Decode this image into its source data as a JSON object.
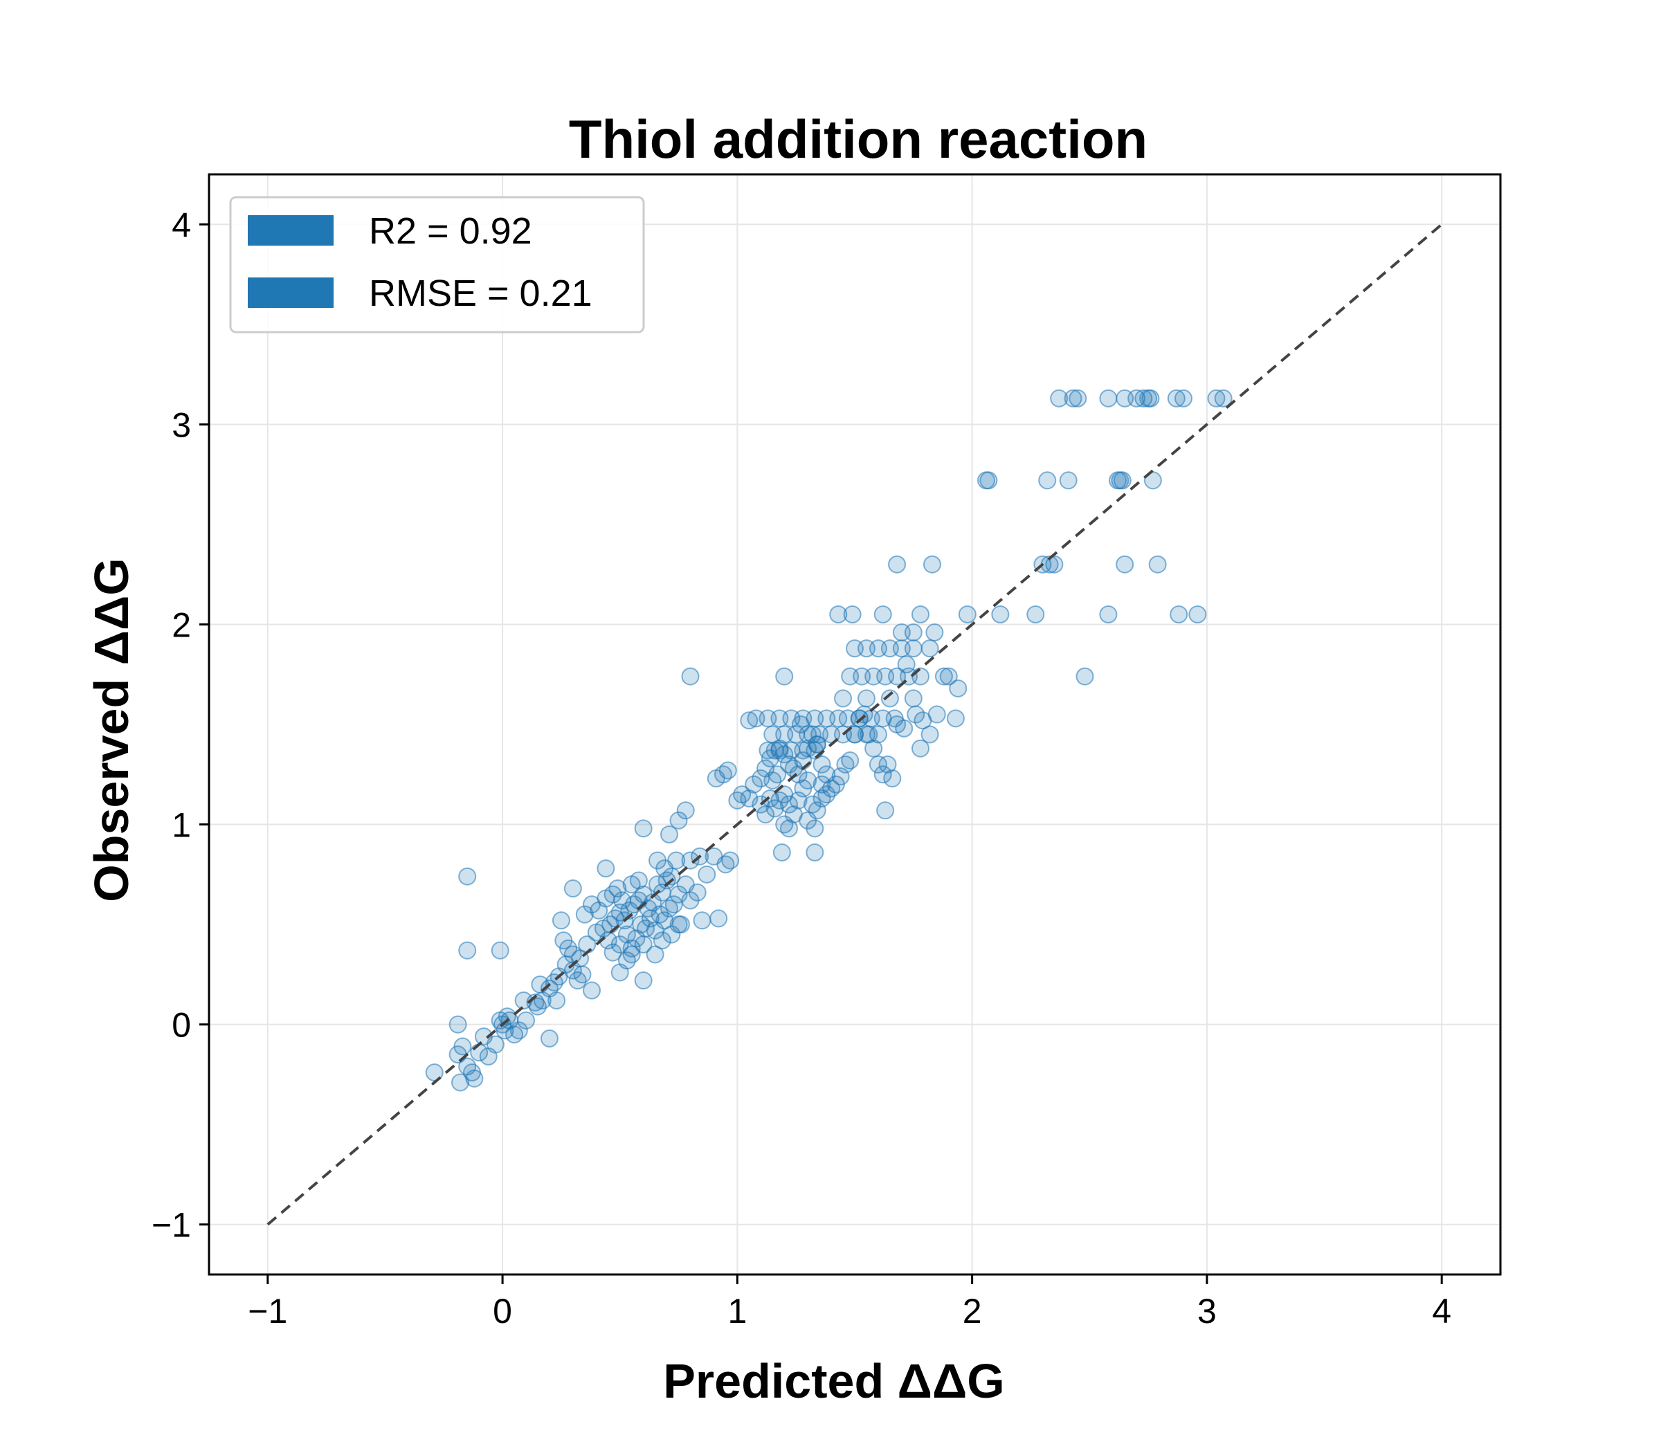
{
  "chart_data": {
    "type": "scatter",
    "title": "Thiol addition reaction",
    "xlabel": "Predicted ΔΔG",
    "ylabel": "Observed ΔΔG",
    "xlim": [
      -1.25,
      4.25
    ],
    "ylim": [
      -1.25,
      4.25
    ],
    "xticks": [
      -1,
      0,
      1,
      2,
      3,
      4
    ],
    "yticks": [
      -1,
      0,
      1,
      2,
      3,
      4
    ],
    "xtick_labels": [
      "−1",
      "0",
      "1",
      "2",
      "3",
      "4"
    ],
    "ytick_labels": [
      "−1",
      "0",
      "1",
      "2",
      "3",
      "4"
    ],
    "grid": true,
    "legend_position": "top-left",
    "legend": [
      {
        "label": "R2 = 0.92",
        "color": "#1f77b4"
      },
      {
        "label": "RMSE = 0.21",
        "color": "#1f77b4"
      }
    ],
    "point_color": "#1f77b4",
    "reference_line": {
      "x": [
        -1,
        4
      ],
      "y": [
        -1,
        4
      ],
      "style": "dashed",
      "color": "#444444"
    },
    "points": [
      [
        -0.29,
        -0.24
      ],
      [
        -0.19,
        -0.15
      ],
      [
        -0.18,
        -0.29
      ],
      [
        -0.19,
        0.0
      ],
      [
        -0.17,
        -0.11
      ],
      [
        -0.15,
        -0.21
      ],
      [
        -0.13,
        -0.24
      ],
      [
        -0.12,
        -0.27
      ],
      [
        -0.1,
        -0.14
      ],
      [
        -0.08,
        -0.06
      ],
      [
        -0.06,
        -0.16
      ],
      [
        -0.03,
        -0.1
      ],
      [
        -0.01,
        0.02
      ],
      [
        0.0,
        0.0
      ],
      [
        0.01,
        -0.03
      ],
      [
        0.02,
        0.04
      ],
      [
        0.03,
        0.02
      ],
      [
        0.05,
        -0.05
      ],
      [
        0.07,
        -0.03
      ],
      [
        0.1,
        0.02
      ],
      [
        0.14,
        0.11
      ],
      [
        0.16,
        0.2
      ],
      [
        0.17,
        0.12
      ],
      [
        0.2,
        0.18
      ],
      [
        0.22,
        0.21
      ],
      [
        0.24,
        0.24
      ],
      [
        0.2,
        -0.07
      ],
      [
        0.27,
        0.3
      ],
      [
        0.3,
        0.27
      ],
      [
        0.33,
        0.33
      ],
      [
        0.36,
        0.4
      ],
      [
        0.4,
        0.46
      ],
      [
        0.43,
        0.48
      ],
      [
        0.46,
        0.5
      ],
      [
        0.48,
        0.53
      ],
      [
        0.5,
        0.56
      ],
      [
        0.52,
        0.52
      ],
      [
        0.54,
        0.57
      ],
      [
        0.56,
        0.6
      ],
      [
        0.58,
        0.62
      ],
      [
        0.6,
        0.65
      ],
      [
        0.62,
        0.58
      ],
      [
        0.64,
        0.61
      ],
      [
        0.66,
        0.7
      ],
      [
        0.68,
        0.66
      ],
      [
        0.7,
        0.72
      ],
      [
        0.72,
        0.74
      ],
      [
        0.45,
        0.42
      ],
      [
        0.47,
        0.36
      ],
      [
        0.5,
        0.4
      ],
      [
        0.53,
        0.45
      ],
      [
        0.55,
        0.38
      ],
      [
        0.57,
        0.43
      ],
      [
        0.59,
        0.5
      ],
      [
        0.61,
        0.48
      ],
      [
        0.63,
        0.53
      ],
      [
        0.65,
        0.47
      ],
      [
        0.67,
        0.55
      ],
      [
        0.69,
        0.52
      ],
      [
        0.71,
        0.58
      ],
      [
        0.73,
        0.6
      ],
      [
        0.75,
        0.65
      ],
      [
        0.78,
        0.7
      ],
      [
        0.8,
        0.82
      ],
      [
        0.84,
        0.84
      ],
      [
        0.9,
        0.84
      ],
      [
        0.35,
        0.55
      ],
      [
        0.38,
        0.6
      ],
      [
        0.41,
        0.57
      ],
      [
        0.44,
        0.63
      ],
      [
        0.47,
        0.65
      ],
      [
        0.49,
        0.68
      ],
      [
        0.51,
        0.62
      ],
      [
        0.55,
        0.7
      ],
      [
        0.58,
        0.72
      ],
      [
        0.3,
        0.35
      ],
      [
        0.32,
        0.22
      ],
      [
        0.34,
        0.25
      ],
      [
        0.26,
        0.42
      ],
      [
        0.28,
        0.38
      ],
      [
        0.25,
        0.52
      ],
      [
        0.3,
        0.68
      ],
      [
        0.44,
        0.78
      ],
      [
        0.6,
        0.98
      ],
      [
        0.6,
        0.22
      ],
      [
        0.75,
        0.5
      ],
      [
        0.85,
        0.52
      ],
      [
        0.92,
        0.53
      ],
      [
        0.95,
        0.8
      ],
      [
        0.97,
        0.82
      ],
      [
        0.8,
        1.74
      ],
      [
        0.78,
        1.07
      ],
      [
        0.75,
        1.02
      ],
      [
        0.71,
        0.95
      ],
      [
        0.66,
        0.82
      ],
      [
        0.69,
        0.78
      ],
      [
        0.74,
        0.82
      ],
      [
        0.87,
        0.75
      ],
      [
        -0.15,
        0.74
      ],
      [
        -0.15,
        0.37
      ],
      [
        -0.01,
        0.37
      ],
      [
        0.09,
        0.12
      ],
      [
        0.15,
        0.09
      ],
      [
        0.23,
        0.12
      ],
      [
        0.38,
        0.17
      ],
      [
        0.5,
        0.26
      ],
      [
        0.53,
        0.32
      ],
      [
        0.55,
        0.35
      ],
      [
        0.6,
        0.4
      ],
      [
        0.65,
        0.35
      ],
      [
        0.68,
        0.42
      ],
      [
        0.72,
        0.45
      ],
      [
        0.76,
        0.5
      ],
      [
        0.8,
        0.62
      ],
      [
        0.83,
        0.66
      ],
      [
        0.91,
        1.23
      ],
      [
        0.94,
        1.25
      ],
      [
        0.96,
        1.27
      ],
      [
        1.0,
        1.12
      ],
      [
        1.02,
        1.15
      ],
      [
        1.05,
        1.13
      ],
      [
        1.07,
        1.2
      ],
      [
        1.1,
        1.23
      ],
      [
        1.12,
        1.28
      ],
      [
        1.14,
        1.33
      ],
      [
        1.16,
        1.37
      ],
      [
        1.18,
        1.38
      ],
      [
        1.2,
        1.35
      ],
      [
        1.22,
        1.3
      ],
      [
        1.24,
        1.28
      ],
      [
        1.26,
        1.25
      ],
      [
        1.28,
        1.32
      ],
      [
        1.3,
        1.38
      ],
      [
        1.32,
        1.45
      ],
      [
        1.34,
        1.4
      ],
      [
        1.36,
        1.3
      ],
      [
        1.38,
        1.25
      ],
      [
        1.4,
        1.18
      ],
      [
        1.42,
        1.2
      ],
      [
        1.44,
        1.24
      ],
      [
        1.46,
        1.3
      ],
      [
        1.48,
        1.32
      ],
      [
        1.5,
        1.45
      ],
      [
        1.52,
        1.53
      ],
      [
        1.54,
        1.55
      ],
      [
        1.56,
        1.45
      ],
      [
        1.58,
        1.38
      ],
      [
        1.6,
        1.3
      ],
      [
        1.62,
        1.25
      ],
      [
        1.64,
        1.3
      ],
      [
        1.66,
        1.23
      ],
      [
        1.1,
        1.1
      ],
      [
        1.12,
        1.05
      ],
      [
        1.14,
        1.13
      ],
      [
        1.16,
        1.08
      ],
      [
        1.18,
        1.12
      ],
      [
        1.2,
        1.15
      ],
      [
        1.22,
        1.1
      ],
      [
        1.24,
        1.05
      ],
      [
        1.26,
        1.12
      ],
      [
        1.28,
        1.18
      ],
      [
        1.3,
        1.22
      ],
      [
        1.32,
        1.1
      ],
      [
        1.34,
        1.07
      ],
      [
        1.36,
        1.13
      ],
      [
        1.08,
        1.53
      ],
      [
        1.13,
        1.53
      ],
      [
        1.18,
        1.53
      ],
      [
        1.23,
        1.53
      ],
      [
        1.28,
        1.53
      ],
      [
        1.33,
        1.53
      ],
      [
        1.38,
        1.53
      ],
      [
        1.15,
        1.45
      ],
      [
        1.2,
        1.45
      ],
      [
        1.25,
        1.45
      ],
      [
        1.3,
        1.45
      ],
      [
        1.35,
        1.45
      ],
      [
        1.4,
        1.45
      ],
      [
        1.45,
        1.45
      ],
      [
        1.5,
        1.45
      ],
      [
        1.55,
        1.45
      ],
      [
        1.6,
        1.45
      ],
      [
        1.13,
        1.37
      ],
      [
        1.18,
        1.37
      ],
      [
        1.23,
        1.37
      ],
      [
        1.28,
        1.37
      ],
      [
        1.33,
        1.37
      ],
      [
        1.43,
        1.53
      ],
      [
        1.47,
        1.53
      ],
      [
        1.52,
        1.53
      ],
      [
        1.57,
        1.53
      ],
      [
        1.62,
        1.53
      ],
      [
        1.67,
        1.53
      ],
      [
        1.45,
        1.63
      ],
      [
        1.55,
        1.63
      ],
      [
        1.65,
        1.63
      ],
      [
        1.75,
        1.63
      ],
      [
        1.48,
        1.74
      ],
      [
        1.53,
        1.74
      ],
      [
        1.58,
        1.74
      ],
      [
        1.63,
        1.74
      ],
      [
        1.68,
        1.74
      ],
      [
        1.73,
        1.74
      ],
      [
        1.78,
        1.74
      ],
      [
        1.88,
        1.74
      ],
      [
        1.9,
        1.74
      ],
      [
        1.5,
        1.88
      ],
      [
        1.55,
        1.88
      ],
      [
        1.6,
        1.88
      ],
      [
        1.65,
        1.88
      ],
      [
        1.7,
        1.88
      ],
      [
        1.75,
        1.88
      ],
      [
        1.82,
        1.88
      ],
      [
        1.7,
        1.96
      ],
      [
        1.75,
        1.96
      ],
      [
        1.84,
        1.96
      ],
      [
        1.43,
        2.05
      ],
      [
        1.49,
        2.05
      ],
      [
        1.62,
        2.05
      ],
      [
        1.78,
        2.05
      ],
      [
        1.68,
        2.3
      ],
      [
        1.83,
        2.3
      ],
      [
        1.72,
        1.8
      ],
      [
        1.76,
        1.55
      ],
      [
        1.79,
        1.52
      ],
      [
        1.82,
        1.45
      ],
      [
        1.78,
        1.38
      ],
      [
        1.68,
        1.5
      ],
      [
        1.71,
        1.48
      ],
      [
        1.85,
        1.55
      ],
      [
        1.93,
        1.53
      ],
      [
        1.94,
        1.68
      ],
      [
        1.2,
        1.74
      ],
      [
        1.19,
        0.86
      ],
      [
        1.33,
        0.86
      ],
      [
        1.63,
        1.07
      ],
      [
        1.05,
        1.52
      ],
      [
        1.27,
        1.5
      ],
      [
        1.34,
        1.4
      ],
      [
        1.36,
        1.2
      ],
      [
        1.38,
        1.15
      ],
      [
        1.2,
        1.0
      ],
      [
        1.22,
        0.98
      ],
      [
        1.3,
        1.02
      ],
      [
        1.33,
        0.98
      ],
      [
        1.15,
        1.22
      ],
      [
        1.17,
        1.25
      ],
      [
        2.07,
        2.72
      ],
      [
        2.06,
        2.72
      ],
      [
        2.32,
        2.72
      ],
      [
        2.41,
        2.72
      ],
      [
        2.62,
        2.72
      ],
      [
        2.64,
        2.72
      ],
      [
        2.63,
        2.72
      ],
      [
        2.77,
        2.72
      ],
      [
        2.3,
        2.3
      ],
      [
        2.33,
        2.3
      ],
      [
        2.35,
        2.3
      ],
      [
        2.65,
        2.3
      ],
      [
        2.79,
        2.3
      ],
      [
        1.98,
        2.05
      ],
      [
        2.12,
        2.05
      ],
      [
        2.27,
        2.05
      ],
      [
        2.58,
        2.05
      ],
      [
        2.88,
        2.05
      ],
      [
        2.96,
        2.05
      ],
      [
        2.48,
        1.74
      ],
      [
        2.37,
        3.13
      ],
      [
        2.43,
        3.13
      ],
      [
        2.45,
        3.13
      ],
      [
        2.58,
        3.13
      ],
      [
        2.65,
        3.13
      ],
      [
        2.7,
        3.13
      ],
      [
        2.73,
        3.13
      ],
      [
        2.75,
        3.13
      ],
      [
        2.76,
        3.13
      ],
      [
        2.87,
        3.13
      ],
      [
        2.9,
        3.13
      ],
      [
        3.04,
        3.13
      ],
      [
        3.07,
        3.13
      ]
    ]
  }
}
